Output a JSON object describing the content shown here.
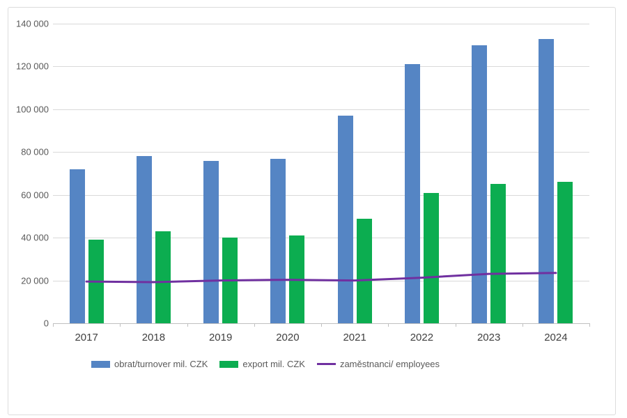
{
  "chart_data": {
    "type": "bar",
    "subtype": "grouped bars with overlay line",
    "title": "",
    "xlabel": "",
    "ylabel": "",
    "categories": [
      "2017",
      "2018",
      "2019",
      "2020",
      "2021",
      "2022",
      "2023",
      "2024"
    ],
    "series": [
      {
        "key": "turnover",
        "name": "obrat/turnover mil. CZK",
        "type": "bar",
        "color": "#5585C4",
        "values": [
          72000,
          78000,
          76000,
          77000,
          97000,
          121000,
          130000,
          133000
        ]
      },
      {
        "key": "export",
        "name": "export mil. CZK",
        "type": "bar",
        "color": "#0CAD50",
        "values": [
          39000,
          43000,
          40000,
          41000,
          49000,
          61000,
          65000,
          66000
        ]
      },
      {
        "key": "employees",
        "name": "zaměstnanci/ employees",
        "type": "line",
        "color": "#7030A0",
        "values": [
          19500,
          19200,
          20000,
          20300,
          20000,
          21300,
          23100,
          23500
        ]
      }
    ],
    "ylim": [
      0,
      140000
    ],
    "ytick_step": 20000,
    "ytick_labels": [
      "0",
      "20 000",
      "40 000",
      "60 000",
      "80 000",
      "100 000",
      "120 000",
      "140 000"
    ],
    "grid": true,
    "legend_position": "bottom",
    "colors": {
      "gridline": "#D9D9D9",
      "axis_line": "#BFBFBF",
      "tick_label": "#595959",
      "category_label": "#404040",
      "frame_border": "#DCDCDC",
      "background": "#FFFFFF"
    }
  }
}
